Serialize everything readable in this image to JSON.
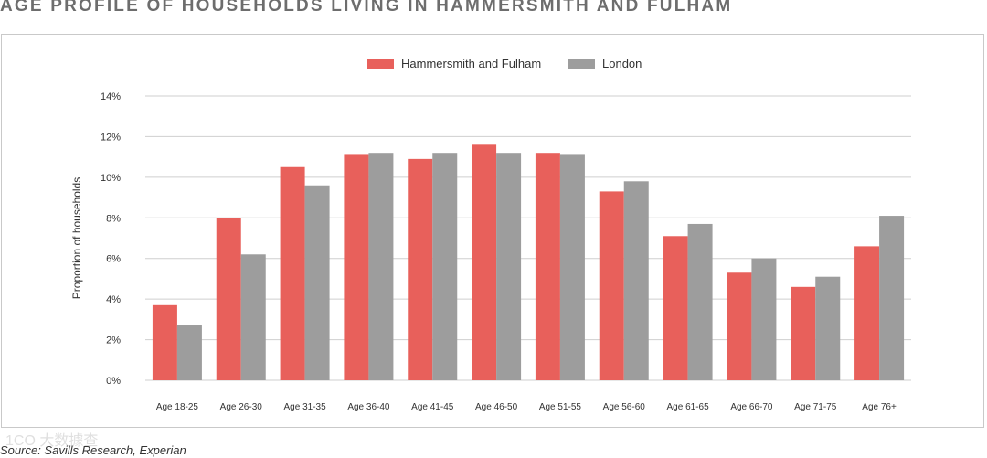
{
  "page": {
    "title": "AGE PROFILE OF HOUSEHOLDS LIVING IN HAMMERSMITH AND FULHAM",
    "source": "Source: Savills Research, Experian",
    "watermark": "1CO 大数據查"
  },
  "colors": {
    "hammersmith": "#e8605b",
    "london": "#9d9d9d",
    "grid": "#cfcfcf",
    "axis_text": "#333333"
  },
  "chart_data": {
    "type": "bar",
    "title": "AGE PROFILE OF HOUSEHOLDS LIVING IN HAMMERSMITH AND FULHAM",
    "xlabel": "",
    "ylabel": "Proportion of households",
    "ylim": [
      0,
      14
    ],
    "yticks": [
      0,
      2,
      4,
      6,
      8,
      10,
      12,
      14
    ],
    "ytick_labels": [
      "0%",
      "2%",
      "4%",
      "6%",
      "8%",
      "10%",
      "12%",
      "14%"
    ],
    "grid": true,
    "legend_position": "top-center",
    "categories": [
      "Age 18-25",
      "Age 26-30",
      "Age 31-35",
      "Age 36-40",
      "Age 41-45",
      "Age 46-50",
      "Age 51-55",
      "Age 56-60",
      "Age 61-65",
      "Age 66-70",
      "Age 71-75",
      "Age 76+"
    ],
    "series": [
      {
        "name": "Hammersmith and Fulham",
        "values": [
          3.7,
          8.0,
          10.5,
          11.1,
          10.9,
          11.6,
          11.2,
          9.3,
          7.1,
          5.3,
          4.6,
          6.6
        ]
      },
      {
        "name": "London",
        "values": [
          2.7,
          6.2,
          9.6,
          11.2,
          11.2,
          11.2,
          11.1,
          9.8,
          7.7,
          6.0,
          5.1,
          8.1
        ]
      }
    ]
  }
}
